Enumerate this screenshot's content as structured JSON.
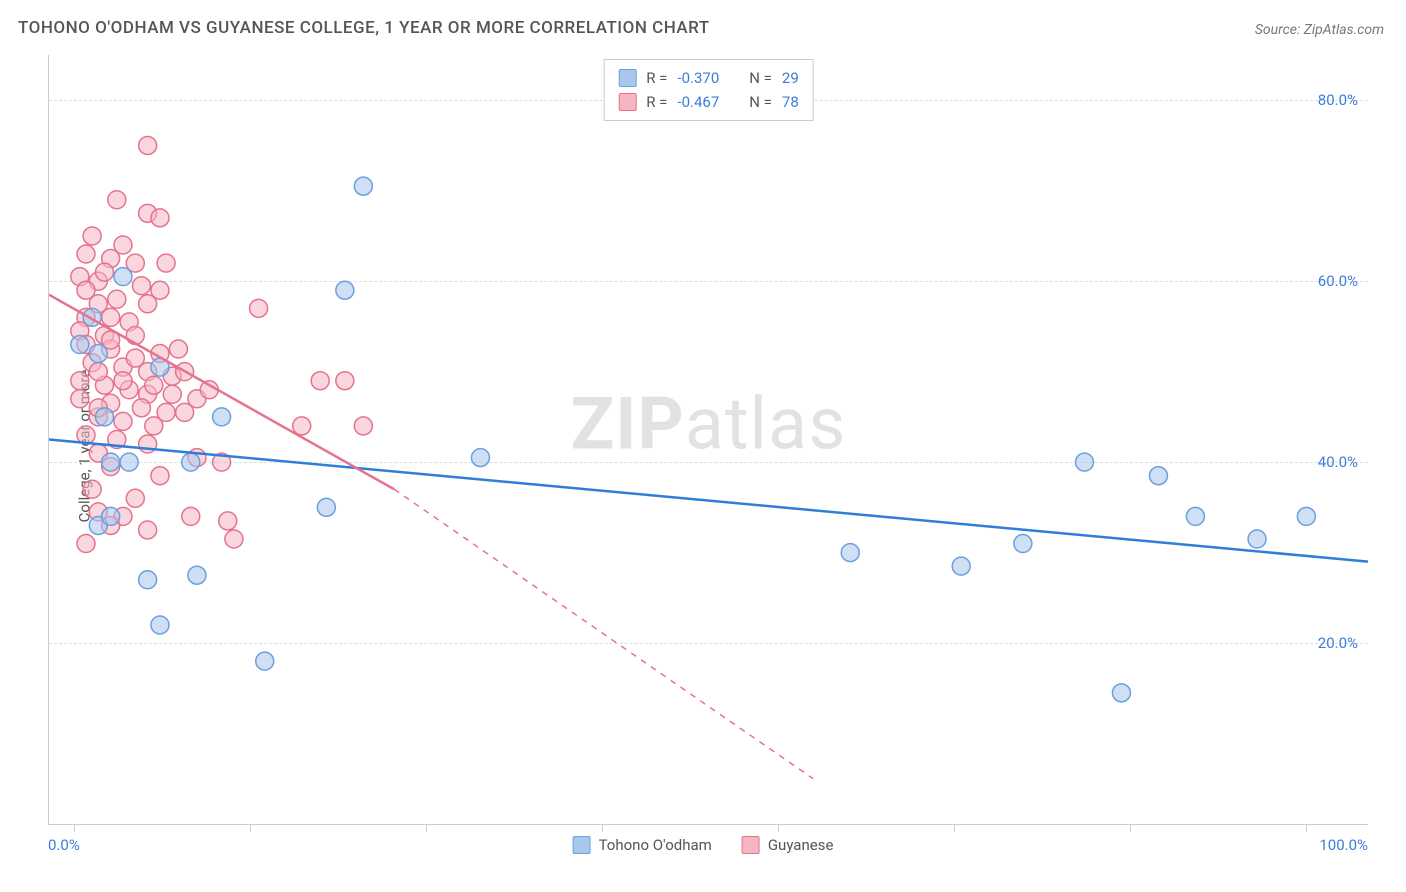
{
  "title": "TOHONO O'ODHAM VS GUYANESE COLLEGE, 1 YEAR OR MORE CORRELATION CHART",
  "source": "Source: ZipAtlas.com",
  "yaxis_label": "College, 1 year or more",
  "watermark_bold": "ZIP",
  "watermark_rest": "atlas",
  "xaxis_min_label": "0.0%",
  "xaxis_max_label": "100.0%",
  "chart": {
    "type": "scatter",
    "xlim": [
      -2,
      105
    ],
    "ylim": [
      0,
      85
    ],
    "ytick_values": [
      20,
      40,
      60,
      80
    ],
    "ytick_labels": [
      "20.0%",
      "40.0%",
      "60.0%",
      "80.0%"
    ],
    "xtick_values": [
      0,
      14.3,
      28.6,
      42.9,
      57.1,
      71.4,
      85.7,
      100
    ],
    "grid_color": "#dddddd",
    "axis_color": "#cccccc",
    "background_color": "#ffffff",
    "marker_radius": 9,
    "marker_stroke_width": 1.5,
    "line_width": 2.5,
    "series": [
      {
        "name": "Tohono O'odham",
        "fill_color": "#a7c7ec",
        "stroke_color": "#6aa0de",
        "line_color": "#2f7ed8",
        "fill_opacity": 0.55,
        "trendline": {
          "x1": -2,
          "y1": 42.5,
          "x2": 105,
          "y2": 29
        },
        "dash_extension": null,
        "R": "-0.370",
        "N": "29",
        "points": [
          [
            23.5,
            70.5
          ],
          [
            22,
            59
          ],
          [
            7,
            50.5
          ],
          [
            2.5,
            45
          ],
          [
            12,
            45
          ],
          [
            3,
            40
          ],
          [
            4.5,
            40
          ],
          [
            9.5,
            40
          ],
          [
            33,
            40.5
          ],
          [
            20.5,
            35
          ],
          [
            2,
            33
          ],
          [
            82,
            40
          ],
          [
            88,
            38.5
          ],
          [
            63,
            30
          ],
          [
            72,
            28.5
          ],
          [
            77,
            31
          ],
          [
            91,
            34
          ],
          [
            100,
            34
          ],
          [
            96,
            31.5
          ],
          [
            85,
            14.5
          ],
          [
            6,
            27
          ],
          [
            10,
            27.5
          ],
          [
            7,
            22
          ],
          [
            15.5,
            18
          ],
          [
            3,
            34
          ],
          [
            1.5,
            56
          ],
          [
            4,
            60.5
          ],
          [
            0.5,
            53
          ],
          [
            2,
            52
          ]
        ]
      },
      {
        "name": "Guyanese",
        "fill_color": "#f5b6c4",
        "stroke_color": "#e6738d",
        "line_color": "#e6738d",
        "fill_opacity": 0.55,
        "trendline": {
          "x1": -2,
          "y1": 58.5,
          "x2": 26,
          "y2": 37
        },
        "dash_extension": {
          "x1": 26,
          "y1": 37,
          "x2": 60,
          "y2": 5
        },
        "R": "-0.467",
        "N": "78",
        "points": [
          [
            6,
            75
          ],
          [
            3.5,
            69
          ],
          [
            6,
            67.5
          ],
          [
            7,
            67
          ],
          [
            1,
            63
          ],
          [
            3,
            62.5
          ],
          [
            5,
            62
          ],
          [
            7.5,
            62
          ],
          [
            0.5,
            60.5
          ],
          [
            2,
            60
          ],
          [
            5.5,
            59.5
          ],
          [
            7,
            59
          ],
          [
            2,
            57.5
          ],
          [
            6,
            57.5
          ],
          [
            15,
            57
          ],
          [
            1,
            56
          ],
          [
            3,
            56
          ],
          [
            4.5,
            55.5
          ],
          [
            0.5,
            54.5
          ],
          [
            2.5,
            54
          ],
          [
            5,
            54
          ],
          [
            1,
            53
          ],
          [
            3,
            52.5
          ],
          [
            7,
            52
          ],
          [
            1.5,
            51
          ],
          [
            4,
            50.5
          ],
          [
            6,
            50
          ],
          [
            8,
            49.5
          ],
          [
            0.5,
            49
          ],
          [
            2.5,
            48.5
          ],
          [
            4.5,
            48
          ],
          [
            6,
            47.5
          ],
          [
            8,
            47.5
          ],
          [
            10,
            47
          ],
          [
            3,
            46.5
          ],
          [
            5.5,
            46
          ],
          [
            7.5,
            45.5
          ],
          [
            9,
            45.5
          ],
          [
            2,
            45
          ],
          [
            4,
            44.5
          ],
          [
            6.5,
            44
          ],
          [
            1,
            43
          ],
          [
            3.5,
            42.5
          ],
          [
            6,
            42
          ],
          [
            20,
            49
          ],
          [
            22,
            49
          ],
          [
            18.5,
            44
          ],
          [
            23.5,
            44
          ],
          [
            10,
            40.5
          ],
          [
            12,
            40
          ],
          [
            3,
            39.5
          ],
          [
            7,
            38.5
          ],
          [
            1.5,
            37
          ],
          [
            5,
            36
          ],
          [
            2,
            34.5
          ],
          [
            4,
            34
          ],
          [
            9.5,
            34
          ],
          [
            12.5,
            33.5
          ],
          [
            3,
            33
          ],
          [
            6,
            32.5
          ],
          [
            13,
            31.5
          ],
          [
            1,
            31
          ],
          [
            1,
            59
          ],
          [
            2.5,
            61
          ],
          [
            4,
            64
          ],
          [
            1.5,
            65
          ],
          [
            3,
            53.5
          ],
          [
            5,
            51.5
          ],
          [
            8.5,
            52.5
          ],
          [
            2,
            50
          ],
          [
            4,
            49
          ],
          [
            0.5,
            47
          ],
          [
            2,
            46
          ],
          [
            6.5,
            48.5
          ],
          [
            9,
            50
          ],
          [
            11,
            48
          ],
          [
            3.5,
            58
          ],
          [
            2,
            41
          ]
        ]
      }
    ]
  },
  "colors": {
    "title_text": "#555555",
    "source_text": "#777777",
    "tick_text": "#3b7dd8",
    "legend_text": "#555555"
  },
  "fonts": {
    "title_size": 17,
    "tick_size": 15,
    "legend_size": 15,
    "watermark_size": 72
  }
}
